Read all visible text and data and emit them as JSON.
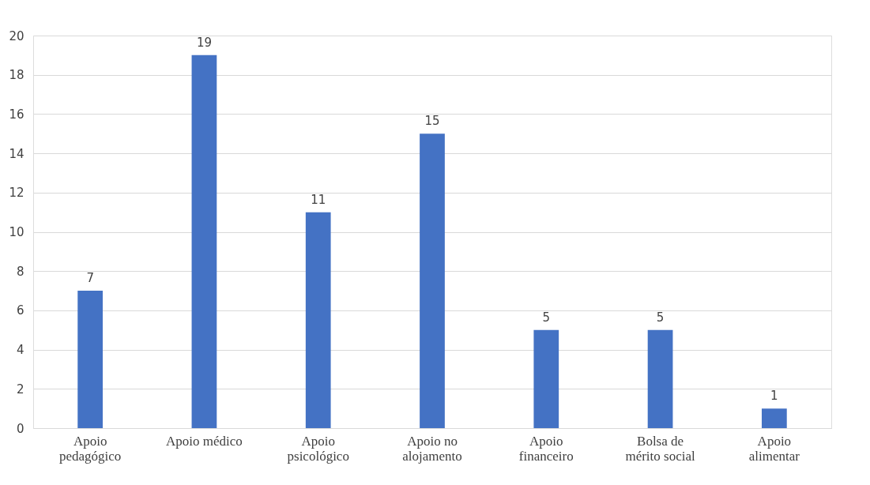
{
  "chart_data": {
    "type": "bar",
    "categories": [
      "Apoio pedagógico",
      "Apoio médico",
      "Apoio psicológico",
      "Apoio no alojamento",
      "Apoio financeiro",
      "Bolsa de mérito social",
      "Apoio alimentar"
    ],
    "values": [
      7,
      19,
      11,
      15,
      5,
      5,
      1
    ],
    "color": "#4472c4",
    "ylim": [
      0,
      20
    ],
    "yticks": [
      0,
      2,
      4,
      6,
      8,
      10,
      12,
      14,
      16,
      18,
      20
    ],
    "grid": "y",
    "data_labels": true
  }
}
